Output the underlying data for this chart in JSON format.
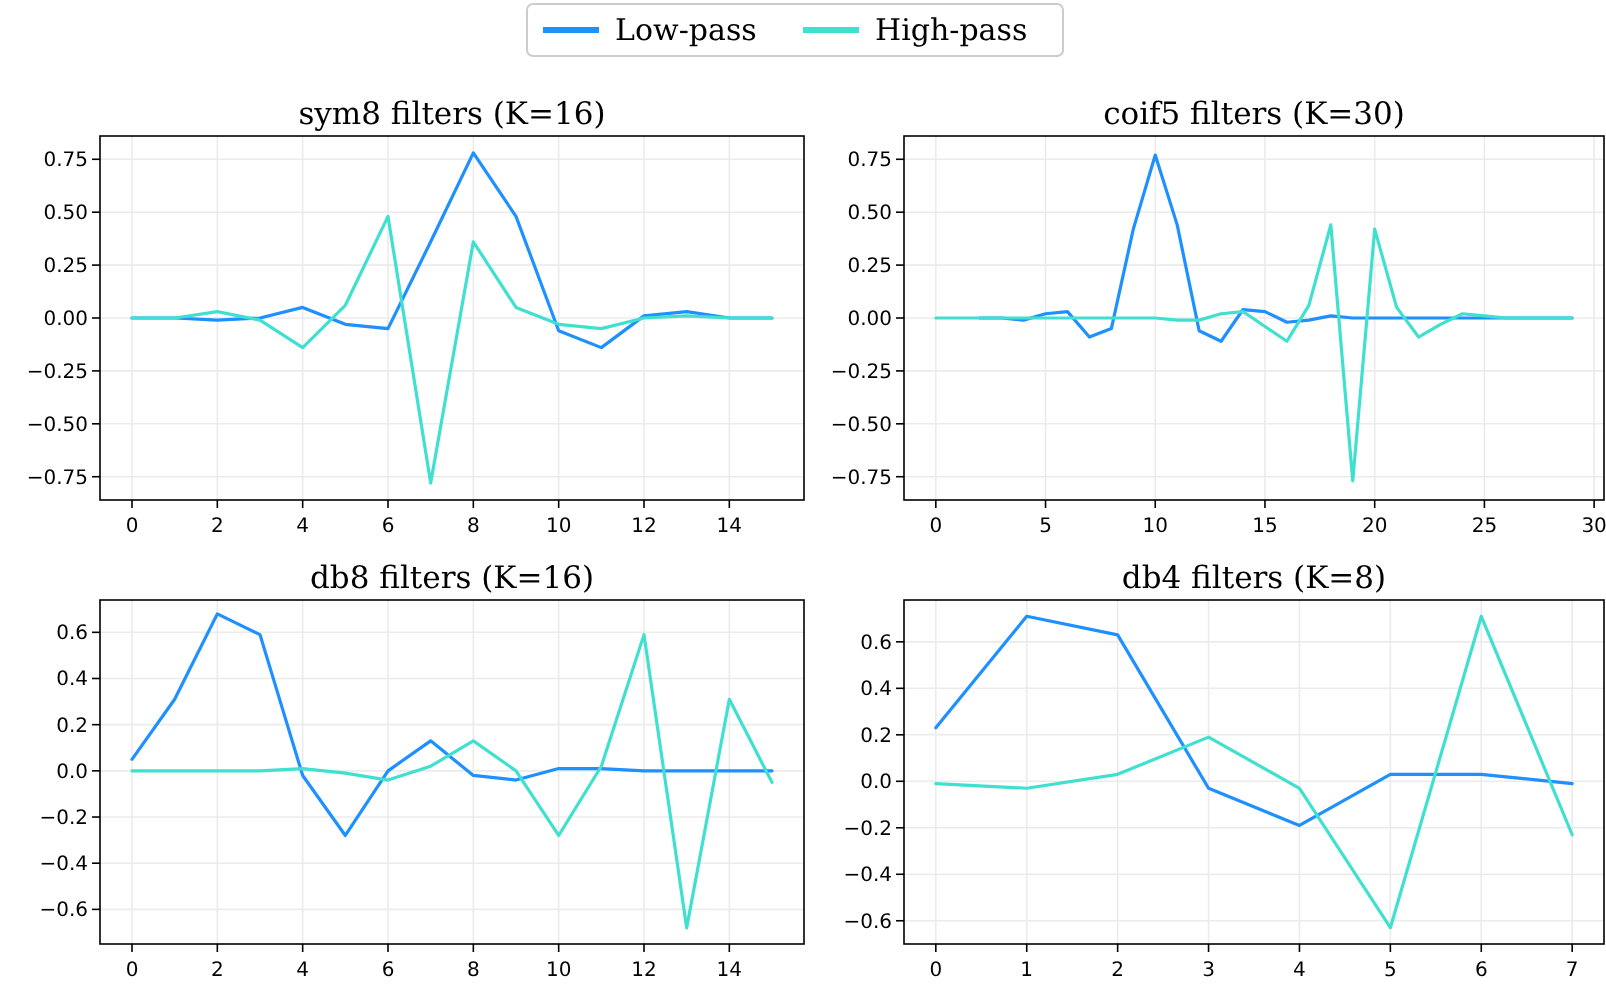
{
  "chart_data": [
    {
      "type": "line",
      "title": "sym8 filters (K=16)",
      "legend": "top",
      "grid": true,
      "x": [
        0,
        1,
        2,
        3,
        4,
        5,
        6,
        7,
        8,
        9,
        10,
        11,
        12,
        13,
        14,
        15
      ],
      "xlim": [
        -0.75,
        15.75
      ],
      "xticks": [
        0,
        2,
        4,
        6,
        8,
        10,
        12,
        14
      ],
      "ylim": [
        -0.86,
        0.86
      ],
      "yticks": [
        {
          "value": -0.75,
          "label": "−0.75"
        },
        {
          "value": -0.5,
          "label": "−0.50"
        },
        {
          "value": -0.25,
          "label": "−0.25"
        },
        {
          "value": 0,
          "label": "0.00"
        },
        {
          "value": 0.25,
          "label": "0.25"
        },
        {
          "value": 0.5,
          "label": "0.50"
        },
        {
          "value": 0.75,
          "label": "0.75"
        }
      ],
      "series": [
        {
          "name": "Low-pass",
          "color": "#1e90ff",
          "values": [
            0.0,
            0.0,
            -0.01,
            0.0,
            0.05,
            -0.03,
            -0.05,
            0.36,
            0.78,
            0.48,
            -0.06,
            -0.14,
            0.01,
            0.03,
            0.0,
            0.0
          ]
        },
        {
          "name": "High-pass",
          "color": "#40e0d0",
          "values": [
            0.0,
            0.0,
            0.03,
            -0.01,
            -0.14,
            0.06,
            0.48,
            -0.78,
            0.36,
            0.05,
            -0.03,
            -0.05,
            0.0,
            0.01,
            0.0,
            0.0
          ]
        }
      ]
    },
    {
      "type": "line",
      "title": "coif5 filters (K=30)",
      "grid": true,
      "x": [
        0,
        1,
        2,
        3,
        4,
        5,
        6,
        7,
        8,
        9,
        10,
        11,
        12,
        13,
        14,
        15,
        16,
        17,
        18,
        19,
        20,
        21,
        22,
        23,
        24,
        25,
        26,
        27,
        28,
        29
      ],
      "xlim": [
        -1.45,
        30.45
      ],
      "xticks": [
        0,
        5,
        10,
        15,
        20,
        25,
        30
      ],
      "ylim": [
        -0.86,
        0.86
      ],
      "yticks": [
        {
          "value": -0.75,
          "label": "−0.75"
        },
        {
          "value": -0.5,
          "label": "−0.50"
        },
        {
          "value": -0.25,
          "label": "−0.25"
        },
        {
          "value": 0,
          "label": "0.00"
        },
        {
          "value": 0.25,
          "label": "0.25"
        },
        {
          "value": 0.5,
          "label": "0.50"
        },
        {
          "value": 0.75,
          "label": "0.75"
        }
      ],
      "series": [
        {
          "color": "#1e90ff",
          "values": [
            null,
            null,
            0.0,
            0.0,
            -0.01,
            0.02,
            0.03,
            -0.09,
            -0.05,
            0.42,
            0.77,
            0.44,
            -0.06,
            -0.11,
            0.04,
            0.03,
            -0.02,
            -0.01,
            0.01,
            0.0,
            0.0,
            0.0,
            0.0,
            0.0,
            0.0,
            0.0,
            0.0,
            0.0,
            0.0,
            0.0
          ]
        },
        {
          "color": "#40e0d0",
          "values": [
            0.0,
            0.0,
            0.0,
            0.0,
            0.0,
            0.0,
            0.0,
            0.0,
            0.0,
            0.0,
            0.0,
            -0.01,
            -0.01,
            0.02,
            0.03,
            -0.04,
            -0.11,
            0.06,
            0.44,
            -0.77,
            0.42,
            0.05,
            -0.09,
            -0.03,
            0.02,
            0.01,
            0.0,
            0.0,
            0.0,
            0.0
          ]
        }
      ]
    },
    {
      "type": "line",
      "title": "db8 filters (K=16)",
      "grid": true,
      "x": [
        0,
        1,
        2,
        3,
        4,
        5,
        6,
        7,
        8,
        9,
        10,
        11,
        12,
        13,
        14,
        15
      ],
      "xlim": [
        -0.75,
        15.75
      ],
      "xticks": [
        0,
        2,
        4,
        6,
        8,
        10,
        12,
        14
      ],
      "ylim": [
        -0.75,
        0.74
      ],
      "yticks": [
        -0.6,
        -0.4,
        -0.2,
        {
          "value": 0,
          "label": "0.0"
        },
        0.2,
        0.4,
        0.6
      ],
      "series": [
        {
          "color": "#1e90ff",
          "values": [
            0.05,
            0.31,
            0.68,
            0.59,
            -0.02,
            -0.28,
            0.0,
            0.13,
            -0.02,
            -0.04,
            0.01,
            0.01,
            0.0,
            0.0,
            0.0,
            0.0
          ]
        },
        {
          "color": "#40e0d0",
          "values": [
            0.0,
            0.0,
            0.0,
            0.0,
            0.01,
            -0.01,
            -0.04,
            0.02,
            0.13,
            0.0,
            -0.28,
            0.02,
            0.59,
            -0.68,
            0.31,
            -0.05
          ]
        }
      ]
    },
    {
      "type": "line",
      "title": "db4 filters (K=8)",
      "grid": true,
      "x": [
        0,
        1,
        2,
        3,
        4,
        5,
        6,
        7
      ],
      "xlim": [
        -0.35,
        7.35
      ],
      "xticks": [
        0,
        1,
        2,
        3,
        4,
        5,
        6,
        7
      ],
      "ylim": [
        -0.7,
        0.78
      ],
      "yticks": [
        -0.6,
        -0.4,
        -0.2,
        {
          "value": 0,
          "label": "0.0"
        },
        0.2,
        0.4,
        0.6
      ],
      "series": [
        {
          "color": "#1e90ff",
          "values": [
            0.23,
            0.71,
            0.63,
            -0.03,
            -0.19,
            0.03,
            0.03,
            -0.01
          ]
        },
        {
          "color": "#40e0d0",
          "values": [
            -0.01,
            -0.03,
            0.03,
            0.19,
            -0.03,
            -0.63,
            0.71,
            -0.23
          ]
        }
      ]
    }
  ]
}
